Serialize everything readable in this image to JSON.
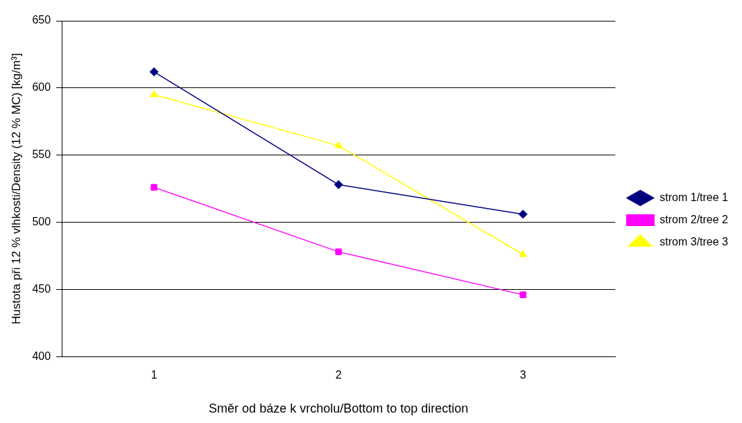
{
  "chart_data": {
    "type": "line",
    "xlabel": "Směr od báze k vrcholu/Bottom to top direction",
    "ylabel": "Hustota při 12 % vlhkosti/Density (12 % MC) [kg/m³]",
    "categories": [
      "1",
      "2",
      "3"
    ],
    "series": [
      {
        "name": "strom 1/tree 1",
        "color": "#000080",
        "marker": "diamond",
        "values": [
          612,
          528,
          506
        ]
      },
      {
        "name": "strom 2/tree 2",
        "color": "#ff00ff",
        "marker": "square",
        "values": [
          526,
          478,
          446
        ]
      },
      {
        "name": "strom 3/tree 3",
        "color": "#ffff00",
        "marker": "triangle",
        "values": [
          595,
          557,
          476
        ]
      }
    ],
    "ylim": [
      400,
      650
    ],
    "yticks": [
      400,
      450,
      500,
      550,
      600,
      650
    ],
    "grid": "y",
    "legend": "right",
    "line_style": "solid"
  }
}
